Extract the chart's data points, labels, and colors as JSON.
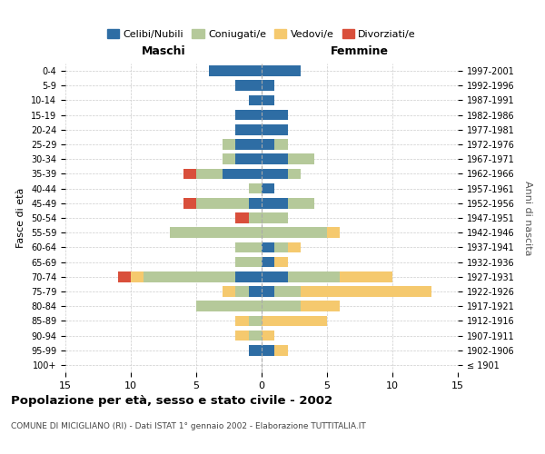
{
  "age_groups": [
    "100+",
    "95-99",
    "90-94",
    "85-89",
    "80-84",
    "75-79",
    "70-74",
    "65-69",
    "60-64",
    "55-59",
    "50-54",
    "45-49",
    "40-44",
    "35-39",
    "30-34",
    "25-29",
    "20-24",
    "15-19",
    "10-14",
    "5-9",
    "0-4"
  ],
  "birth_years": [
    "≤ 1901",
    "1902-1906",
    "1907-1911",
    "1912-1916",
    "1917-1921",
    "1922-1926",
    "1927-1931",
    "1932-1936",
    "1937-1941",
    "1942-1946",
    "1947-1951",
    "1952-1956",
    "1957-1961",
    "1962-1966",
    "1967-1971",
    "1972-1976",
    "1977-1981",
    "1982-1986",
    "1987-1991",
    "1992-1996",
    "1997-2001"
  ],
  "male_celibi": [
    0,
    1,
    0,
    0,
    0,
    1,
    2,
    0,
    0,
    0,
    0,
    1,
    0,
    3,
    2,
    2,
    2,
    2,
    1,
    2,
    4
  ],
  "male_coniugati": [
    0,
    0,
    1,
    1,
    5,
    1,
    7,
    2,
    2,
    7,
    1,
    4,
    1,
    2,
    1,
    1,
    0,
    0,
    0,
    0,
    0
  ],
  "male_vedovi": [
    0,
    0,
    1,
    1,
    0,
    1,
    1,
    0,
    0,
    0,
    0,
    0,
    0,
    0,
    0,
    0,
    0,
    0,
    0,
    0,
    0
  ],
  "male_divorziati": [
    0,
    0,
    0,
    0,
    0,
    0,
    1,
    0,
    0,
    0,
    1,
    1,
    0,
    1,
    0,
    0,
    0,
    0,
    0,
    0,
    0
  ],
  "female_celibi": [
    0,
    1,
    0,
    0,
    0,
    1,
    2,
    1,
    1,
    0,
    0,
    2,
    1,
    2,
    2,
    1,
    2,
    2,
    1,
    1,
    3
  ],
  "female_coniugati": [
    0,
    0,
    0,
    0,
    3,
    2,
    4,
    0,
    1,
    5,
    2,
    2,
    0,
    1,
    2,
    1,
    0,
    0,
    0,
    0,
    0
  ],
  "female_vedovi": [
    0,
    1,
    1,
    5,
    3,
    10,
    4,
    1,
    1,
    1,
    0,
    0,
    0,
    0,
    0,
    0,
    0,
    0,
    0,
    0,
    0
  ],
  "female_divorziati": [
    0,
    0,
    0,
    0,
    0,
    0,
    0,
    0,
    0,
    0,
    0,
    0,
    0,
    0,
    0,
    0,
    0,
    0,
    0,
    0,
    0
  ],
  "color_celibi": "#2e6da4",
  "color_coniugati": "#b5c99a",
  "color_vedovi": "#f5c96e",
  "color_divorziati": "#d94f3b",
  "title": "Popolazione per età, sesso e stato civile - 2002",
  "subtitle": "COMUNE DI MICIGLIANO (RI) - Dati ISTAT 1° gennaio 2002 - Elaborazione TUTTITALIA.IT",
  "xlabel_left": "Maschi",
  "xlabel_right": "Femmine",
  "ylabel_left": "Fasce di età",
  "ylabel_right": "Anni di nascita",
  "xlim": 15,
  "background_color": "#ffffff"
}
